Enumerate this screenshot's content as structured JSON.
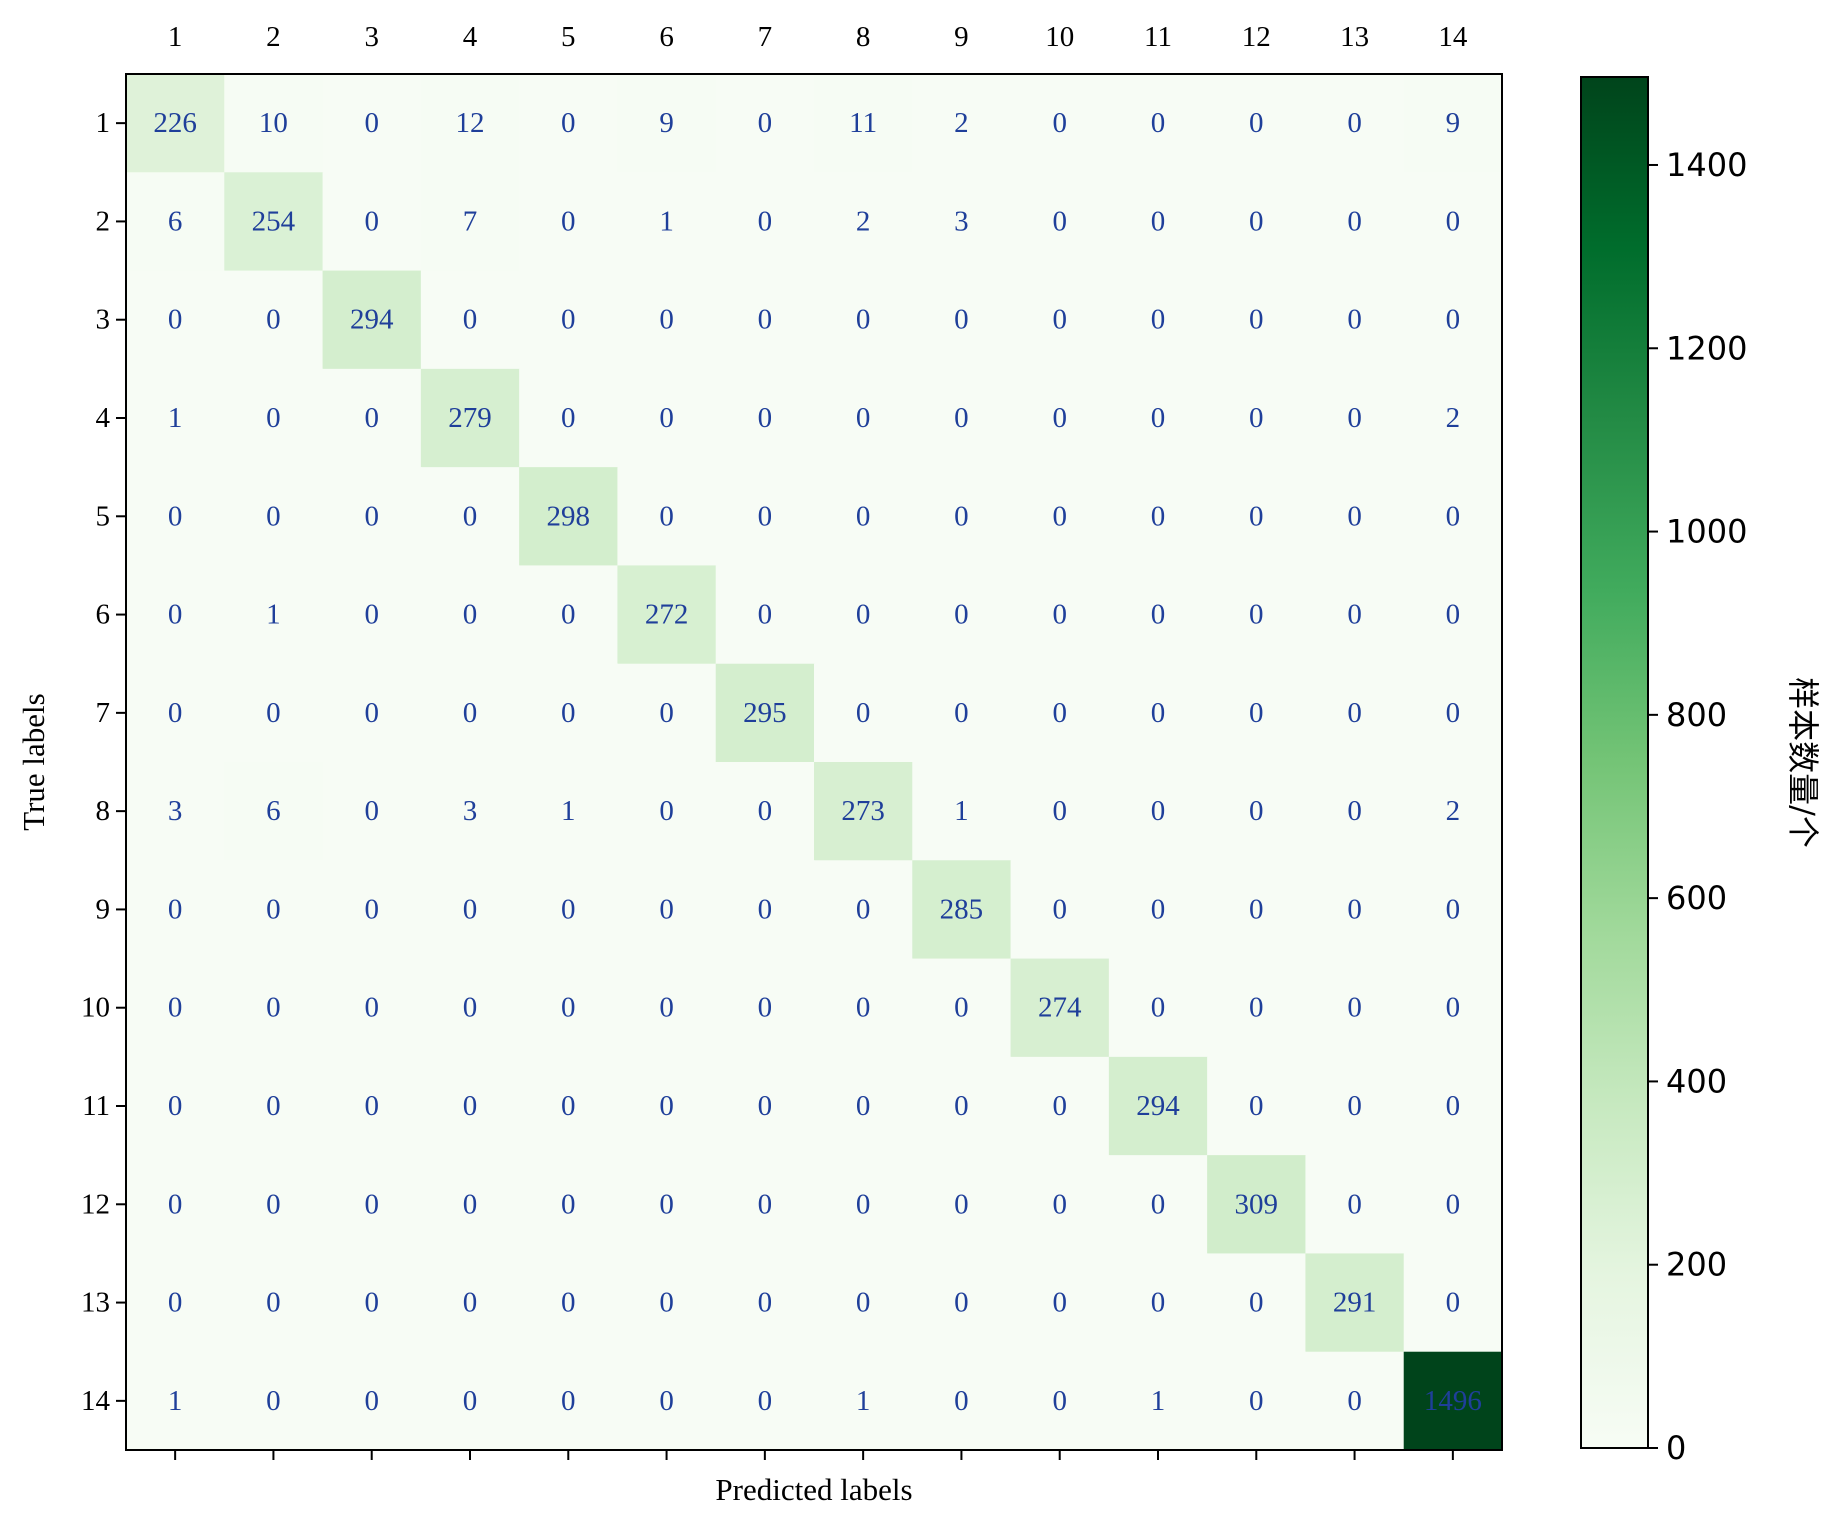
{
  "chart_data": {
    "type": "heatmap",
    "title": "",
    "xlabel": "Predicted labels",
    "ylabel": "True labels",
    "x_categories": [
      "1",
      "2",
      "3",
      "4",
      "5",
      "6",
      "7",
      "8",
      "9",
      "10",
      "11",
      "12",
      "13",
      "14"
    ],
    "y_categories": [
      "1",
      "2",
      "3",
      "4",
      "5",
      "6",
      "7",
      "8",
      "9",
      "10",
      "11",
      "12",
      "13",
      "14"
    ],
    "x_ticks_position": "top and bottom (labels on top)",
    "values": [
      [
        226,
        10,
        0,
        12,
        0,
        9,
        0,
        11,
        2,
        0,
        0,
        0,
        0,
        9
      ],
      [
        6,
        254,
        0,
        7,
        0,
        1,
        0,
        2,
        3,
        0,
        0,
        0,
        0,
        0
      ],
      [
        0,
        0,
        294,
        0,
        0,
        0,
        0,
        0,
        0,
        0,
        0,
        0,
        0,
        0
      ],
      [
        1,
        0,
        0,
        279,
        0,
        0,
        0,
        0,
        0,
        0,
        0,
        0,
        0,
        2
      ],
      [
        0,
        0,
        0,
        0,
        298,
        0,
        0,
        0,
        0,
        0,
        0,
        0,
        0,
        0
      ],
      [
        0,
        1,
        0,
        0,
        0,
        272,
        0,
        0,
        0,
        0,
        0,
        0,
        0,
        0
      ],
      [
        0,
        0,
        0,
        0,
        0,
        0,
        295,
        0,
        0,
        0,
        0,
        0,
        0,
        0
      ],
      [
        3,
        6,
        0,
        3,
        1,
        0,
        0,
        273,
        1,
        0,
        0,
        0,
        0,
        2
      ],
      [
        0,
        0,
        0,
        0,
        0,
        0,
        0,
        0,
        285,
        0,
        0,
        0,
        0,
        0
      ],
      [
        0,
        0,
        0,
        0,
        0,
        0,
        0,
        0,
        0,
        274,
        0,
        0,
        0,
        0
      ],
      [
        0,
        0,
        0,
        0,
        0,
        0,
        0,
        0,
        0,
        0,
        294,
        0,
        0,
        0
      ],
      [
        0,
        0,
        0,
        0,
        0,
        0,
        0,
        0,
        0,
        0,
        0,
        309,
        0,
        0
      ],
      [
        0,
        0,
        0,
        0,
        0,
        0,
        0,
        0,
        0,
        0,
        0,
        0,
        291,
        0
      ],
      [
        1,
        0,
        0,
        0,
        0,
        0,
        0,
        1,
        0,
        0,
        1,
        0,
        0,
        1496
      ]
    ],
    "colormap": "Greens",
    "colorbar": {
      "label": "样本数量/个",
      "range": [
        0,
        1496
      ],
      "ticks": [
        0,
        200,
        400,
        600,
        800,
        1000,
        1200,
        1400
      ],
      "tick_labels": [
        "0",
        "200",
        "400",
        "600",
        "800",
        "1000",
        "1200",
        "1400"
      ]
    },
    "text_color": "#1f3f9a",
    "grid": false
  },
  "colors": {
    "greens_low": "#f7fcf5",
    "greens_high": "#00441b",
    "text": "#1f3f9a",
    "frame": "#000000"
  }
}
